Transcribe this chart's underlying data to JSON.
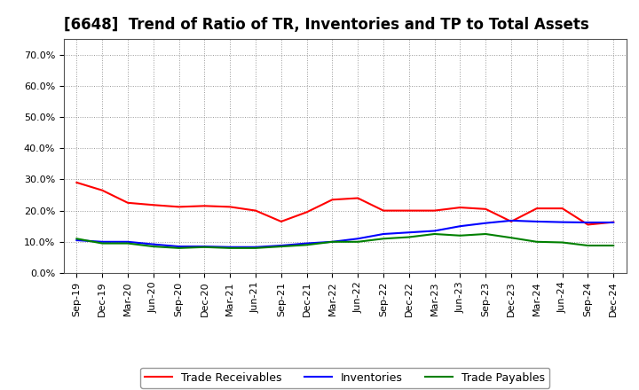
{
  "title": "[6648]  Trend of Ratio of TR, Inventories and TP to Total Assets",
  "x_labels": [
    "Sep-19",
    "Dec-19",
    "Mar-20",
    "Jun-20",
    "Sep-20",
    "Dec-20",
    "Mar-21",
    "Jun-21",
    "Sep-21",
    "Dec-21",
    "Mar-22",
    "Jun-22",
    "Sep-22",
    "Dec-22",
    "Mar-23",
    "Jun-23",
    "Sep-23",
    "Dec-23",
    "Mar-24",
    "Jun-24",
    "Sep-24",
    "Dec-24"
  ],
  "trade_receivables": [
    0.29,
    0.265,
    0.225,
    0.218,
    0.212,
    0.215,
    0.212,
    0.2,
    0.165,
    0.195,
    0.235,
    0.24,
    0.2,
    0.2,
    0.2,
    0.21,
    0.205,
    0.165,
    0.207,
    0.207,
    0.155,
    0.163
  ],
  "inventories": [
    0.105,
    0.1,
    0.1,
    0.092,
    0.085,
    0.085,
    0.083,
    0.083,
    0.088,
    0.095,
    0.1,
    0.11,
    0.125,
    0.13,
    0.135,
    0.15,
    0.16,
    0.168,
    0.165,
    0.163,
    0.162,
    0.162
  ],
  "trade_payables": [
    0.11,
    0.095,
    0.095,
    0.085,
    0.08,
    0.083,
    0.08,
    0.08,
    0.085,
    0.09,
    0.1,
    0.1,
    0.11,
    0.115,
    0.125,
    0.12,
    0.125,
    0.113,
    0.1,
    0.098,
    0.088,
    0.088
  ],
  "tr_color": "#ff0000",
  "inv_color": "#0000ff",
  "tp_color": "#008000",
  "ylim": [
    0.0,
    0.75
  ],
  "yticks": [
    0.0,
    0.1,
    0.2,
    0.3,
    0.4,
    0.5,
    0.6,
    0.7
  ],
  "background_color": "#ffffff",
  "plot_bg_color": "#ffffff",
  "grid_color": "#999999",
  "legend_labels": [
    "Trade Receivables",
    "Inventories",
    "Trade Payables"
  ],
  "title_fontsize": 12,
  "tick_fontsize": 8,
  "legend_fontsize": 9,
  "line_width": 1.5
}
